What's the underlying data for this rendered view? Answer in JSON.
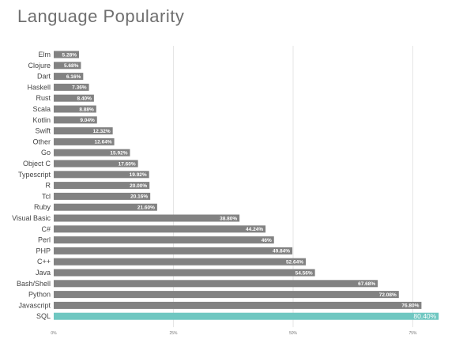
{
  "chart_data": {
    "type": "bar",
    "orientation": "horizontal",
    "title": "Language Popularity",
    "xlabel": "",
    "ylabel": "",
    "xlim": [
      0,
      100
    ],
    "grid": true,
    "legend": "none",
    "x_ticks": [
      "0%",
      "25%",
      "50%",
      "75%"
    ],
    "x_tick_values": [
      0,
      25,
      50,
      75
    ],
    "categories": [
      "Elm",
      "Clojure",
      "Dart",
      "Haskell",
      "Rust",
      "Scala",
      "Kotlin",
      "Swift",
      "Other",
      "Go",
      "Object C",
      "Typescript",
      "R",
      "Tcl",
      "Ruby",
      "Visual Basic",
      "C#",
      "Perl",
      "PHP",
      "C++",
      "Java",
      "Bash/Shell",
      "Python",
      "Javascript",
      "SQL"
    ],
    "values": [
      5.28,
      5.68,
      6.16,
      7.36,
      8.4,
      8.88,
      9.04,
      12.32,
      12.64,
      15.92,
      17.6,
      19.92,
      20.0,
      20.16,
      21.6,
      38.8,
      44.24,
      46,
      49.84,
      52.64,
      54.56,
      67.68,
      72.08,
      76.8,
      80.4
    ],
    "value_labels": [
      "5.28%",
      "5.68%",
      "6.16%",
      "7.36%",
      "8.40%",
      "8.88%",
      "9.04%",
      "12.32%",
      "12.64%",
      "15.92%",
      "17.60%",
      "19.92%",
      "20.00%",
      "20.16%",
      "21.60%",
      "38.80%",
      "44.24%",
      "46%",
      "49.84%",
      "52.64%",
      "54.56%",
      "67.68%",
      "72.08%",
      "76.80%",
      "80.40%"
    ],
    "highlight_category": "SQL",
    "colors": {
      "bar": "#828282",
      "highlight": "#6fc7c1",
      "grid": "#e6e6e6",
      "title": "#6f6f6f"
    }
  }
}
